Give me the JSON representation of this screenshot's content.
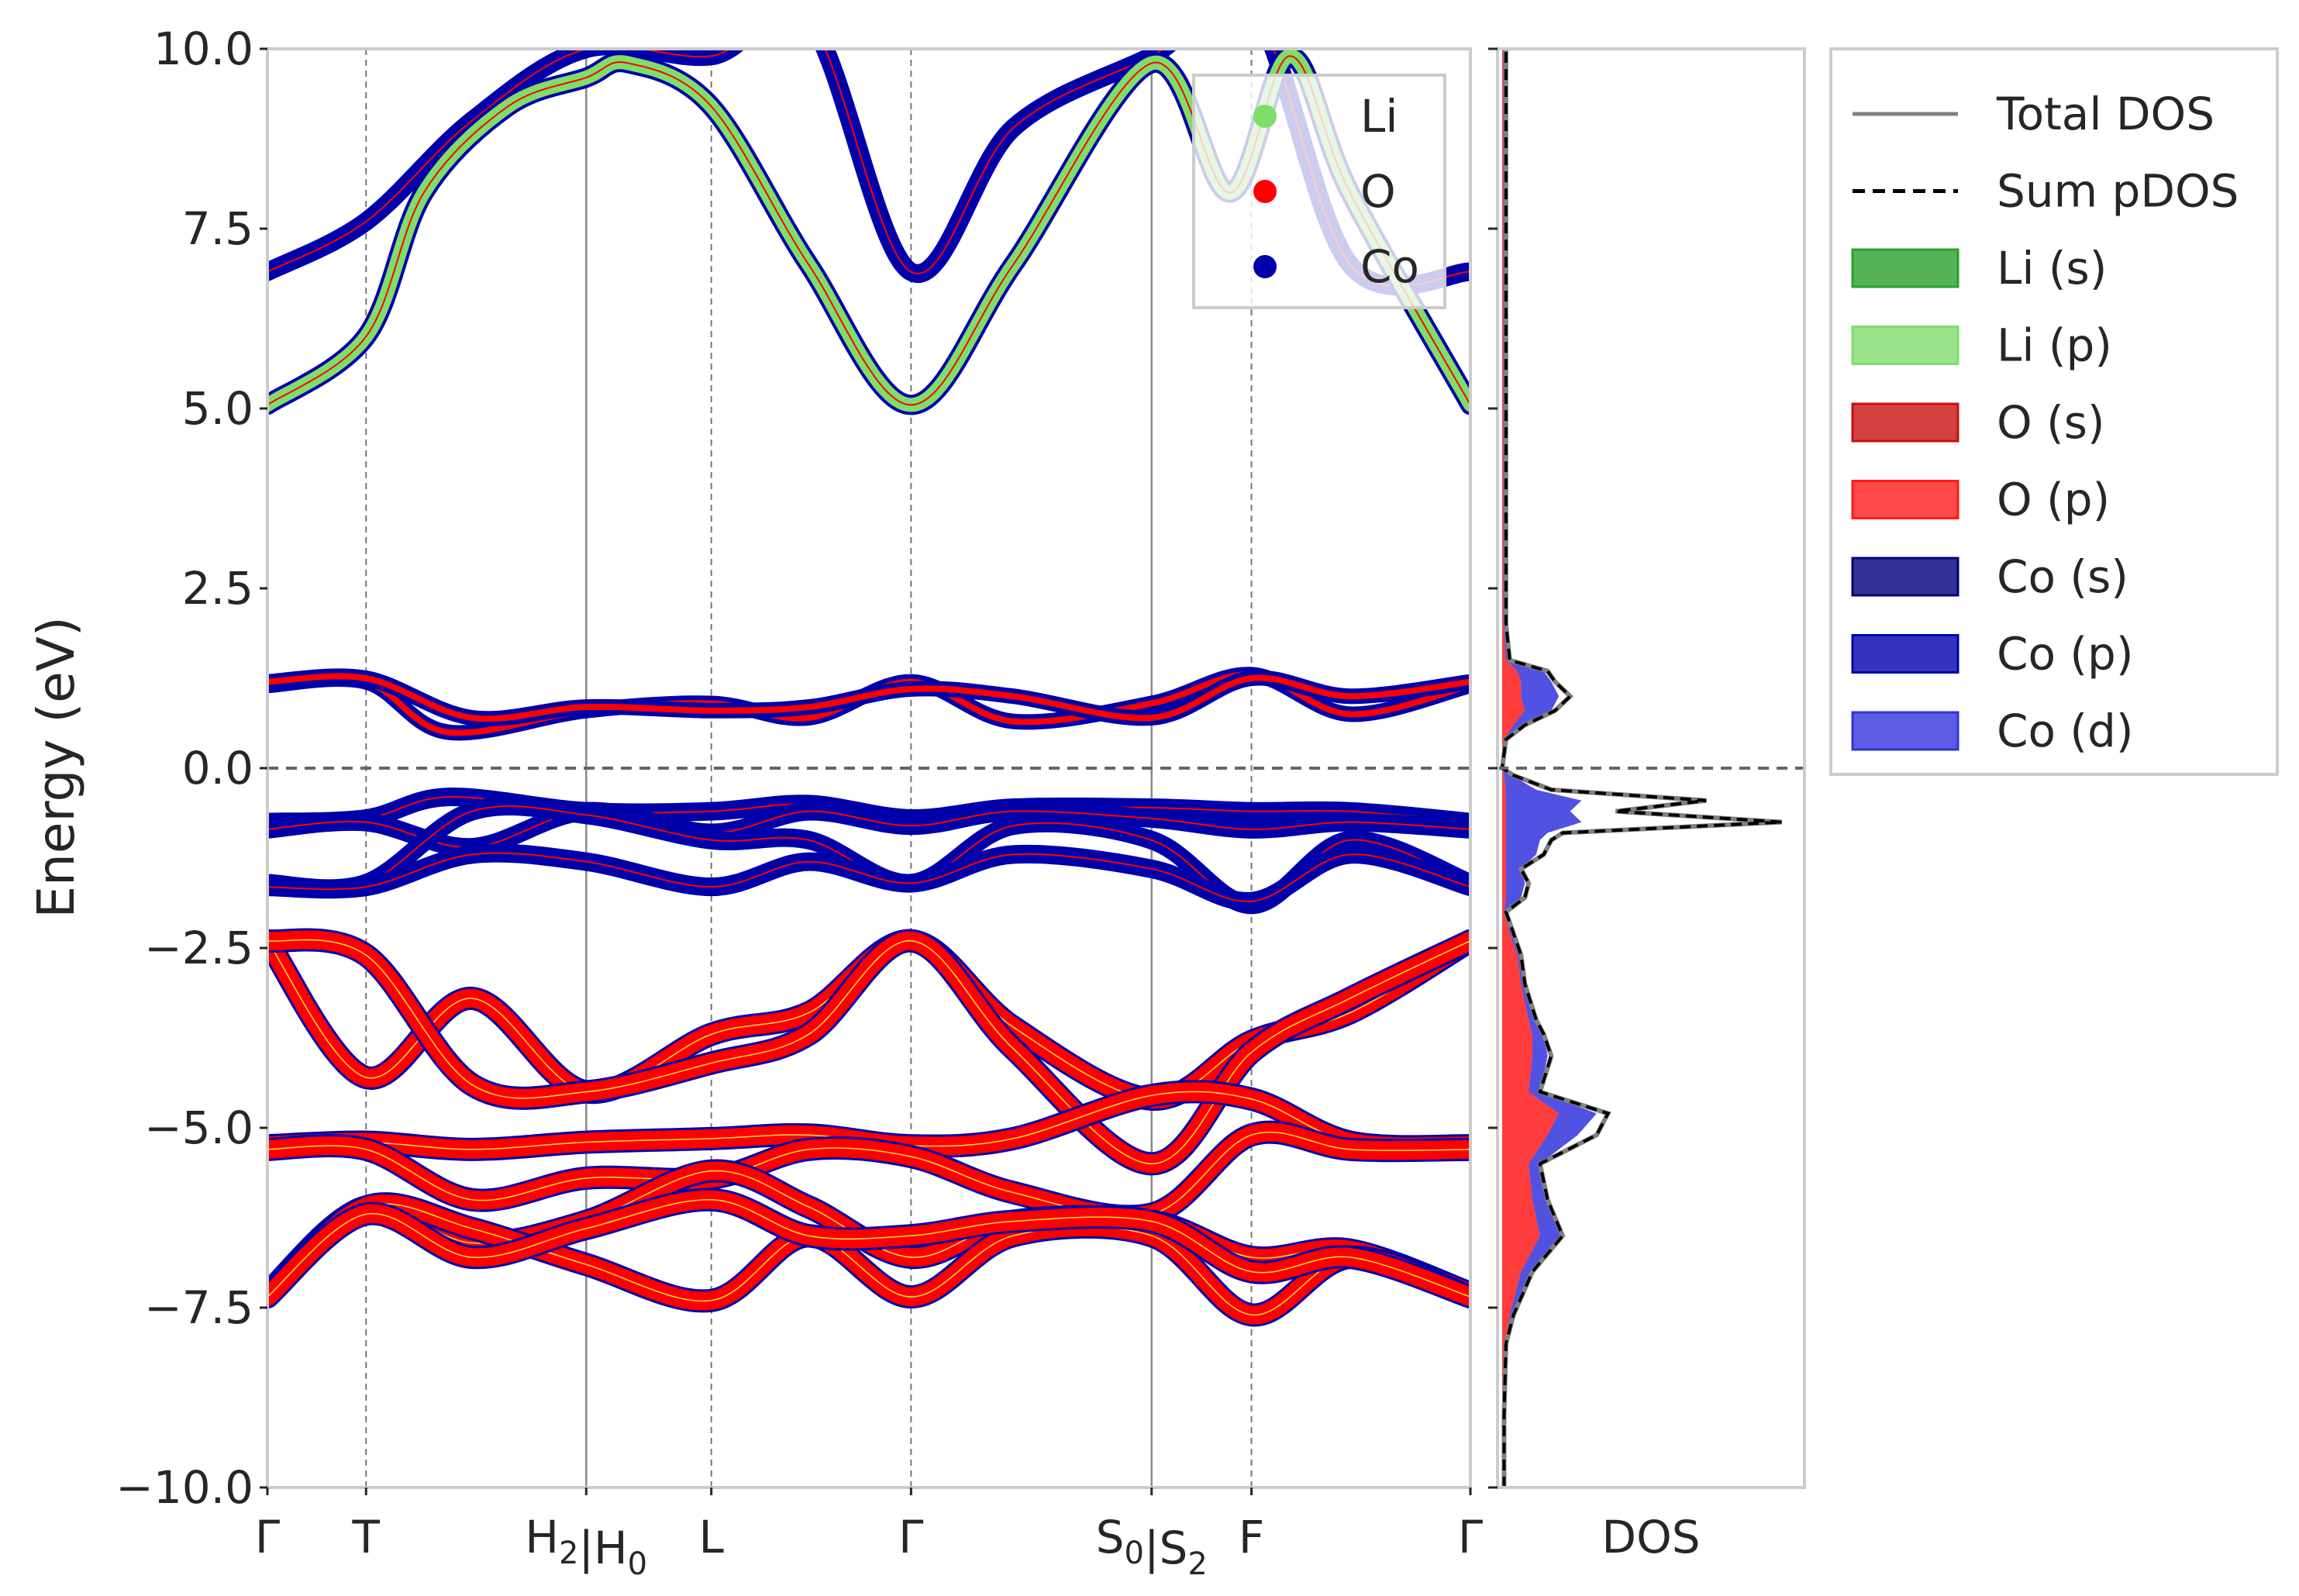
{
  "chart_data": [
    {
      "type": "line",
      "panel": "band-structure",
      "ylabel": "Energy (eV)",
      "ylim": [
        -10.0,
        10.0
      ],
      "yticks": [
        "10.0",
        "7.5",
        "5.0",
        "2.5",
        "0.0",
        "−2.5",
        "−5.0",
        "−7.5",
        "−10.0"
      ],
      "ytick_values": [
        10.0,
        7.5,
        5.0,
        2.5,
        0.0,
        -2.5,
        -5.0,
        -7.5,
        -10.0
      ],
      "kpath": [
        {
          "label": "Γ",
          "x": 0.0
        },
        {
          "label": "T",
          "x": 0.082
        },
        {
          "label": "H₂|H₀",
          "x": 0.265
        },
        {
          "label": "L",
          "x": 0.369
        },
        {
          "label": "Γ",
          "x": 0.535
        },
        {
          "label": "S₀|S₂",
          "x": 0.735
        },
        {
          "label": "F",
          "x": 0.818
        },
        {
          "label": "Γ",
          "x": 1.0
        }
      ],
      "segment_breaks": [
        0.265,
        0.735
      ],
      "fermi_level": 0.0,
      "legend": {
        "placement": "top-right",
        "entries": [
          {
            "name": "Li",
            "color": "#7fdd6a"
          },
          {
            "name": "O",
            "color": "#ff0000"
          },
          {
            "name": "Co",
            "color": "#0000aa"
          }
        ]
      },
      "bands": [
        {
          "character": "Co",
          "x": [
            0,
            0.082,
            0.17,
            0.265,
            0.369,
            0.45,
            0.535,
            0.62,
            0.735,
            0.818,
            0.9,
            1.0
          ],
          "y": [
            6.9,
            7.6,
            9.0,
            10.0,
            9.9,
            10.4,
            6.9,
            8.9,
            9.9,
            10.6,
            7.0,
            6.9
          ]
        },
        {
          "character": "Li",
          "x": [
            0,
            0.082,
            0.13,
            0.2,
            0.265,
            0.3,
            0.369,
            0.45,
            0.535,
            0.62,
            0.735,
            0.8,
            0.85,
            0.9,
            1.0
          ],
          "y": [
            5.05,
            6.0,
            8.0,
            9.2,
            9.6,
            9.8,
            9.2,
            7.0,
            5.05,
            7.0,
            9.8,
            8.0,
            9.9,
            8.0,
            5.05
          ]
        },
        {
          "character": "O/Co",
          "x": [
            0,
            0.082,
            0.15,
            0.265,
            0.369,
            0.45,
            0.535,
            0.62,
            0.735,
            0.818,
            0.9,
            1.0
          ],
          "y": [
            1.15,
            1.2,
            0.5,
            0.8,
            0.9,
            0.7,
            1.2,
            0.65,
            0.9,
            1.3,
            0.75,
            1.15
          ]
        },
        {
          "character": "O/Co",
          "x": [
            0,
            0.082,
            0.17,
            0.265,
            0.369,
            0.45,
            0.535,
            0.62,
            0.735,
            0.818,
            0.9,
            1.0
          ],
          "y": [
            1.2,
            1.25,
            0.7,
            0.85,
            0.8,
            0.85,
            1.1,
            1.0,
            0.7,
            1.25,
            1.0,
            1.2
          ]
        },
        {
          "character": "Co",
          "x": [
            0,
            0.082,
            0.15,
            0.265,
            0.369,
            0.45,
            0.535,
            0.62,
            0.735,
            0.818,
            0.9,
            1.0
          ],
          "y": [
            -0.75,
            -0.7,
            -0.4,
            -0.6,
            -0.6,
            -0.5,
            -0.7,
            -0.55,
            -0.55,
            -0.6,
            -0.6,
            -0.75
          ]
        },
        {
          "character": "Co",
          "x": [
            0,
            0.082,
            0.17,
            0.265,
            0.369,
            0.45,
            0.535,
            0.62,
            0.735,
            0.818,
            0.9,
            1.0
          ],
          "y": [
            -0.85,
            -0.75,
            -1.1,
            -0.6,
            -0.9,
            -0.6,
            -0.8,
            -0.6,
            -0.7,
            -0.85,
            -0.75,
            -0.85
          ]
        },
        {
          "character": "Co",
          "x": [
            0,
            0.082,
            0.17,
            0.265,
            0.369,
            0.45,
            0.535,
            0.62,
            0.735,
            0.818,
            0.9,
            1.0
          ],
          "y": [
            -1.6,
            -1.6,
            -0.6,
            -0.65,
            -1.0,
            -1.0,
            -1.6,
            -0.8,
            -1.0,
            -1.9,
            -1.0,
            -1.6
          ]
        },
        {
          "character": "Co",
          "x": [
            0,
            0.082,
            0.17,
            0.265,
            0.369,
            0.45,
            0.535,
            0.62,
            0.735,
            0.818,
            0.9,
            1.0
          ],
          "y": [
            -1.65,
            -1.65,
            -1.2,
            -1.3,
            -1.65,
            -1.3,
            -1.6,
            -1.2,
            -1.4,
            -1.85,
            -1.2,
            -1.65
          ]
        },
        {
          "character": "O",
          "x": [
            0,
            0.082,
            0.17,
            0.265,
            0.369,
            0.45,
            0.535,
            0.62,
            0.735,
            0.818,
            0.9,
            1.0
          ],
          "y": [
            -2.4,
            -4.3,
            -3.2,
            -4.5,
            -3.7,
            -3.4,
            -2.4,
            -3.6,
            -4.6,
            -3.8,
            -3.4,
            -2.4
          ]
        },
        {
          "character": "O",
          "x": [
            0,
            0.082,
            0.17,
            0.265,
            0.369,
            0.45,
            0.535,
            0.62,
            0.735,
            0.818,
            0.9,
            1.0
          ],
          "y": [
            -2.4,
            -2.6,
            -4.4,
            -4.5,
            -4.1,
            -3.7,
            -2.4,
            -3.9,
            -5.5,
            -3.95,
            -3.2,
            -2.4
          ]
        },
        {
          "character": "O",
          "x": [
            0,
            0.082,
            0.17,
            0.265,
            0.369,
            0.45,
            0.535,
            0.62,
            0.735,
            0.818,
            0.9,
            1.0
          ],
          "y": [
            -5.25,
            -5.2,
            -5.3,
            -5.2,
            -5.15,
            -5.1,
            -5.25,
            -5.15,
            -4.55,
            -4.6,
            -5.2,
            -5.25
          ]
        },
        {
          "character": "O",
          "x": [
            0,
            0.082,
            0.17,
            0.265,
            0.369,
            0.45,
            0.535,
            0.62,
            0.735,
            0.818,
            0.9,
            1.0
          ],
          "y": [
            -5.3,
            -5.3,
            -6.0,
            -5.7,
            -5.7,
            -5.3,
            -5.4,
            -5.9,
            -6.2,
            -5.1,
            -5.3,
            -5.3
          ]
        },
        {
          "character": "O",
          "x": [
            0,
            0.082,
            0.17,
            0.265,
            0.369,
            0.45,
            0.535,
            0.62,
            0.735,
            0.818,
            0.9,
            1.0
          ],
          "y": [
            -7.3,
            -6.1,
            -6.6,
            -6.3,
            -5.6,
            -6.1,
            -6.8,
            -6.3,
            -6.3,
            -6.8,
            -6.7,
            -7.3
          ]
        },
        {
          "character": "O",
          "x": [
            0,
            0.082,
            0.17,
            0.265,
            0.369,
            0.45,
            0.535,
            0.62,
            0.735,
            0.818,
            0.9,
            1.0
          ],
          "y": [
            -7.35,
            -6.1,
            -6.4,
            -6.9,
            -7.4,
            -6.5,
            -7.35,
            -6.5,
            -6.5,
            -7.6,
            -6.8,
            -7.35
          ]
        },
        {
          "character": "O",
          "x": [
            0,
            0.082,
            0.17,
            0.265,
            0.369,
            0.45,
            0.535,
            0.62,
            0.735,
            0.818,
            0.9,
            1.0
          ],
          "y": [
            -7.35,
            -6.2,
            -6.8,
            -6.4,
            -6.0,
            -6.5,
            -6.5,
            -6.3,
            -6.3,
            -7.0,
            -6.8,
            -7.35
          ]
        }
      ]
    },
    {
      "type": "area",
      "panel": "dos",
      "xlabel": "DOS",
      "ylim": [
        -10.0,
        10.0
      ],
      "energy": [
        -10.0,
        -9.0,
        -8.0,
        -7.6,
        -7.0,
        -6.5,
        -6.0,
        -5.5,
        -5.1,
        -4.8,
        -4.5,
        -4.0,
        -3.7,
        -3.5,
        -3.0,
        -2.6,
        -2.3,
        -2.0,
        -1.8,
        -1.6,
        -1.4,
        -1.2,
        -1.0,
        -0.9,
        -0.75,
        -0.6,
        -0.45,
        -0.3,
        -0.1,
        0.0,
        0.4,
        0.6,
        0.8,
        1.0,
        1.2,
        1.35,
        1.5,
        2.0,
        5.0,
        10.0
      ],
      "series": [
        {
          "name": "Total DOS",
          "color": "#808080",
          "values": [
            0.005,
            0.005,
            0.01,
            0.03,
            0.08,
            0.16,
            0.12,
            0.1,
            0.25,
            0.28,
            0.1,
            0.13,
            0.11,
            0.09,
            0.06,
            0.05,
            0.03,
            0.01,
            0.06,
            0.07,
            0.05,
            0.11,
            0.13,
            0.16,
            0.74,
            0.3,
            0.54,
            0.13,
            0.03,
            0.0,
            0.01,
            0.06,
            0.14,
            0.18,
            0.14,
            0.12,
            0.02,
            0.01,
            0.01,
            0.01
          ]
        },
        {
          "name": "Sum pDOS",
          "color": "#000000",
          "values": [
            0.005,
            0.005,
            0.01,
            0.03,
            0.08,
            0.16,
            0.12,
            0.1,
            0.25,
            0.28,
            0.1,
            0.13,
            0.11,
            0.09,
            0.06,
            0.05,
            0.03,
            0.01,
            0.06,
            0.07,
            0.05,
            0.11,
            0.13,
            0.16,
            0.74,
            0.3,
            0.54,
            0.13,
            0.03,
            0.0,
            0.01,
            0.06,
            0.14,
            0.18,
            0.14,
            0.12,
            0.02,
            0.01,
            0.01,
            0.01
          ]
        },
        {
          "name": "Li (s)",
          "color": "#2ca02c",
          "values": [
            0,
            0,
            0,
            0,
            0,
            0,
            0,
            0,
            0,
            0,
            0,
            0,
            0,
            0,
            0,
            0,
            0,
            0,
            0,
            0,
            0,
            0,
            0,
            0,
            0,
            0,
            0,
            0,
            0,
            0,
            0,
            0,
            0,
            0,
            0,
            0,
            0,
            0,
            0,
            0
          ]
        },
        {
          "name": "Li (p)",
          "color": "#7fdd6a",
          "values": [
            0,
            0,
            0,
            0,
            0,
            0,
            0,
            0,
            0,
            0,
            0,
            0,
            0,
            0,
            0,
            0,
            0,
            0,
            0,
            0,
            0,
            0,
            0,
            0,
            0,
            0,
            0,
            0,
            0,
            0,
            0,
            0,
            0,
            0,
            0,
            0,
            0,
            0,
            0,
            0
          ]
        },
        {
          "name": "O (s)",
          "color": "#c81010",
          "values": [
            0,
            0,
            0,
            0,
            0,
            0,
            0,
            0,
            0,
            0,
            0,
            0,
            0,
            0,
            0,
            0,
            0,
            0,
            0,
            0,
            0,
            0,
            0,
            0,
            0,
            0,
            0,
            0,
            0,
            0,
            0,
            0,
            0,
            0,
            0,
            0,
            0,
            0,
            0,
            0
          ]
        },
        {
          "name": "O (p)",
          "color": "#ff1a1a",
          "values": [
            0,
            0,
            0.008,
            0.02,
            0.05,
            0.1,
            0.08,
            0.07,
            0.12,
            0.15,
            0.07,
            0.08,
            0.08,
            0.07,
            0.05,
            0.04,
            0.02,
            0.005,
            0.01,
            0.01,
            0.01,
            0.01,
            0.01,
            0.01,
            0.01,
            0.01,
            0.01,
            0.01,
            0.005,
            0,
            0.005,
            0.03,
            0.06,
            0.05,
            0.05,
            0.04,
            0.01,
            0.003,
            0.003,
            0.003
          ]
        },
        {
          "name": "Co (s)",
          "color": "#00007a",
          "values": [
            0,
            0,
            0,
            0,
            0,
            0,
            0,
            0,
            0,
            0,
            0,
            0,
            0,
            0,
            0,
            0,
            0,
            0,
            0,
            0,
            0,
            0,
            0,
            0,
            0,
            0,
            0,
            0,
            0,
            0,
            0,
            0,
            0,
            0,
            0,
            0,
            0,
            0,
            0,
            0
          ]
        },
        {
          "name": "Co (p)",
          "color": "#0000b0",
          "values": [
            0,
            0,
            0,
            0,
            0,
            0,
            0,
            0,
            0,
            0,
            0,
            0,
            0,
            0,
            0,
            0,
            0,
            0,
            0,
            0,
            0,
            0,
            0,
            0,
            0,
            0,
            0,
            0,
            0,
            0,
            0,
            0,
            0,
            0,
            0,
            0,
            0,
            0,
            0,
            0
          ]
        },
        {
          "name": "Co (d)",
          "color": "#3333dd",
          "values": [
            0,
            0,
            0.002,
            0.01,
            0.03,
            0.06,
            0.04,
            0.03,
            0.08,
            0.1,
            0.03,
            0.04,
            0.03,
            0.02,
            0.01,
            0.01,
            0.01,
            0.005,
            0.04,
            0.05,
            0.04,
            0.08,
            0.09,
            0.11,
            0.2,
            0.17,
            0.2,
            0.08,
            0.02,
            0,
            0.005,
            0.03,
            0.07,
            0.1,
            0.08,
            0.07,
            0.01,
            0.002,
            0.002,
            0.002
          ]
        }
      ],
      "legend": {
        "placement": "outside-right"
      }
    }
  ]
}
